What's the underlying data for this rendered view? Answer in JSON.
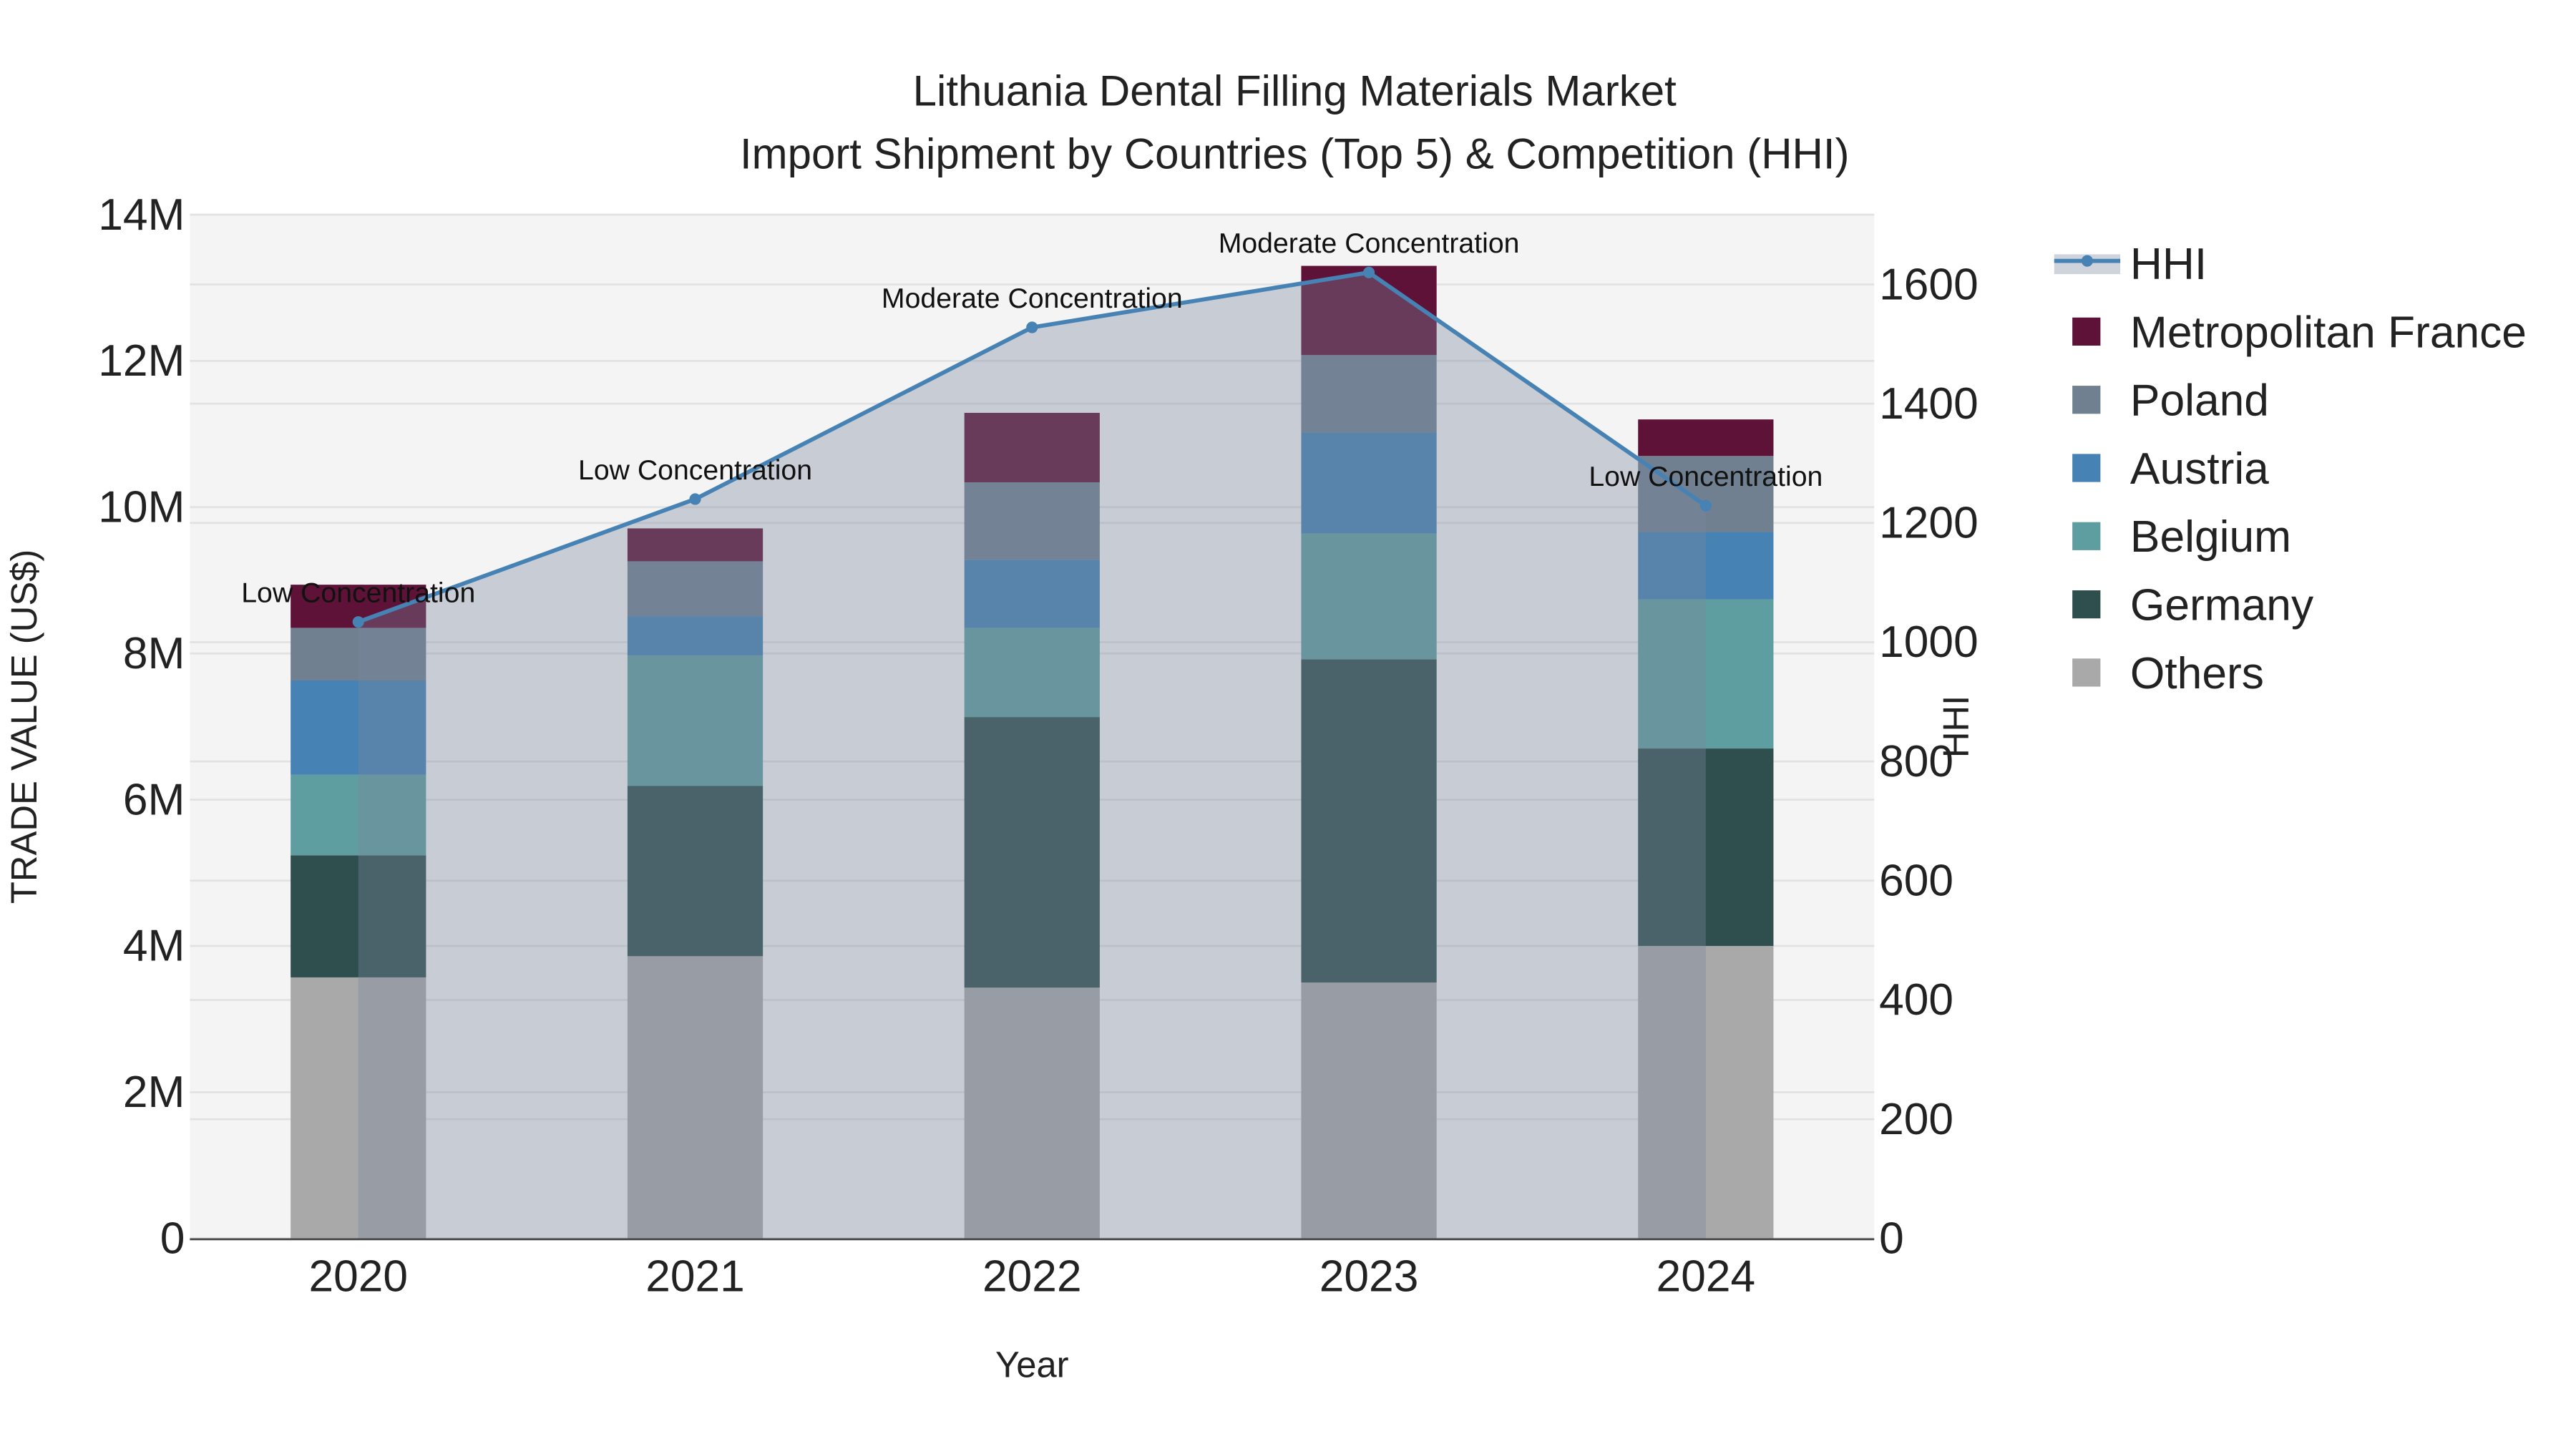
{
  "chart_data": {
    "type": "bar",
    "stacked": true,
    "title": "Lithuania Dental Filling Materials Market",
    "subtitle": "Import Shipment by Countries (Top 5) & Competition (HHI)",
    "xlabel": "Year",
    "ylabel": "TRADE VALUE (US$)",
    "y2label": "HHI",
    "categories": [
      "2020",
      "2021",
      "2022",
      "2023",
      "2024"
    ],
    "ylim": [
      0,
      14000000
    ],
    "y_ticks": [
      0,
      2000000,
      4000000,
      6000000,
      8000000,
      10000000,
      12000000,
      14000000
    ],
    "y_tick_labels": [
      "0",
      "2M",
      "4M",
      "6M",
      "8M",
      "10M",
      "12M",
      "14M"
    ],
    "y2lim": [
      0,
      1717
    ],
    "y2_ticks": [
      0,
      200,
      400,
      600,
      800,
      1000,
      1200,
      1400,
      1600
    ],
    "y2_tick_labels": [
      "0",
      "200",
      "400",
      "600",
      "800",
      "1000",
      "1200",
      "1400",
      "1600"
    ],
    "series": [
      {
        "name": "Others",
        "color": "#a9a9a9",
        "values": [
          3570000,
          3860000,
          3430000,
          3500000,
          4000000
        ]
      },
      {
        "name": "Germany",
        "color": "#2f4f4f",
        "values": [
          1670000,
          2330000,
          3700000,
          4420000,
          2700000
        ]
      },
      {
        "name": "Belgium",
        "color": "#5f9ea0",
        "values": [
          1100000,
          1780000,
          1220000,
          1720000,
          2040000
        ]
      },
      {
        "name": "Austria",
        "color": "#4682b4",
        "values": [
          1290000,
          540000,
          930000,
          1380000,
          920000
        ]
      },
      {
        "name": "Poland",
        "color": "#708090",
        "values": [
          720000,
          750000,
          1060000,
          1060000,
          1040000
        ]
      },
      {
        "name": "Metropolitan France",
        "color": "#5f1237",
        "values": [
          590000,
          450000,
          950000,
          1220000,
          500000
        ]
      }
    ],
    "line": {
      "name": "HHI",
      "axis": "right",
      "color": "#4682b4",
      "values": [
        1034,
        1240,
        1528,
        1620,
        1229
      ],
      "annotations": [
        "Low Concentration",
        "Low Concentration",
        "Moderate Concentration",
        "Moderate Concentration",
        "Low Concentration"
      ]
    },
    "legend": {
      "placement": "right",
      "entries": [
        "HHI",
        "Metropolitan France",
        "Poland",
        "Austria",
        "Belgium",
        "Germany",
        "Others"
      ]
    },
    "grid": true
  }
}
